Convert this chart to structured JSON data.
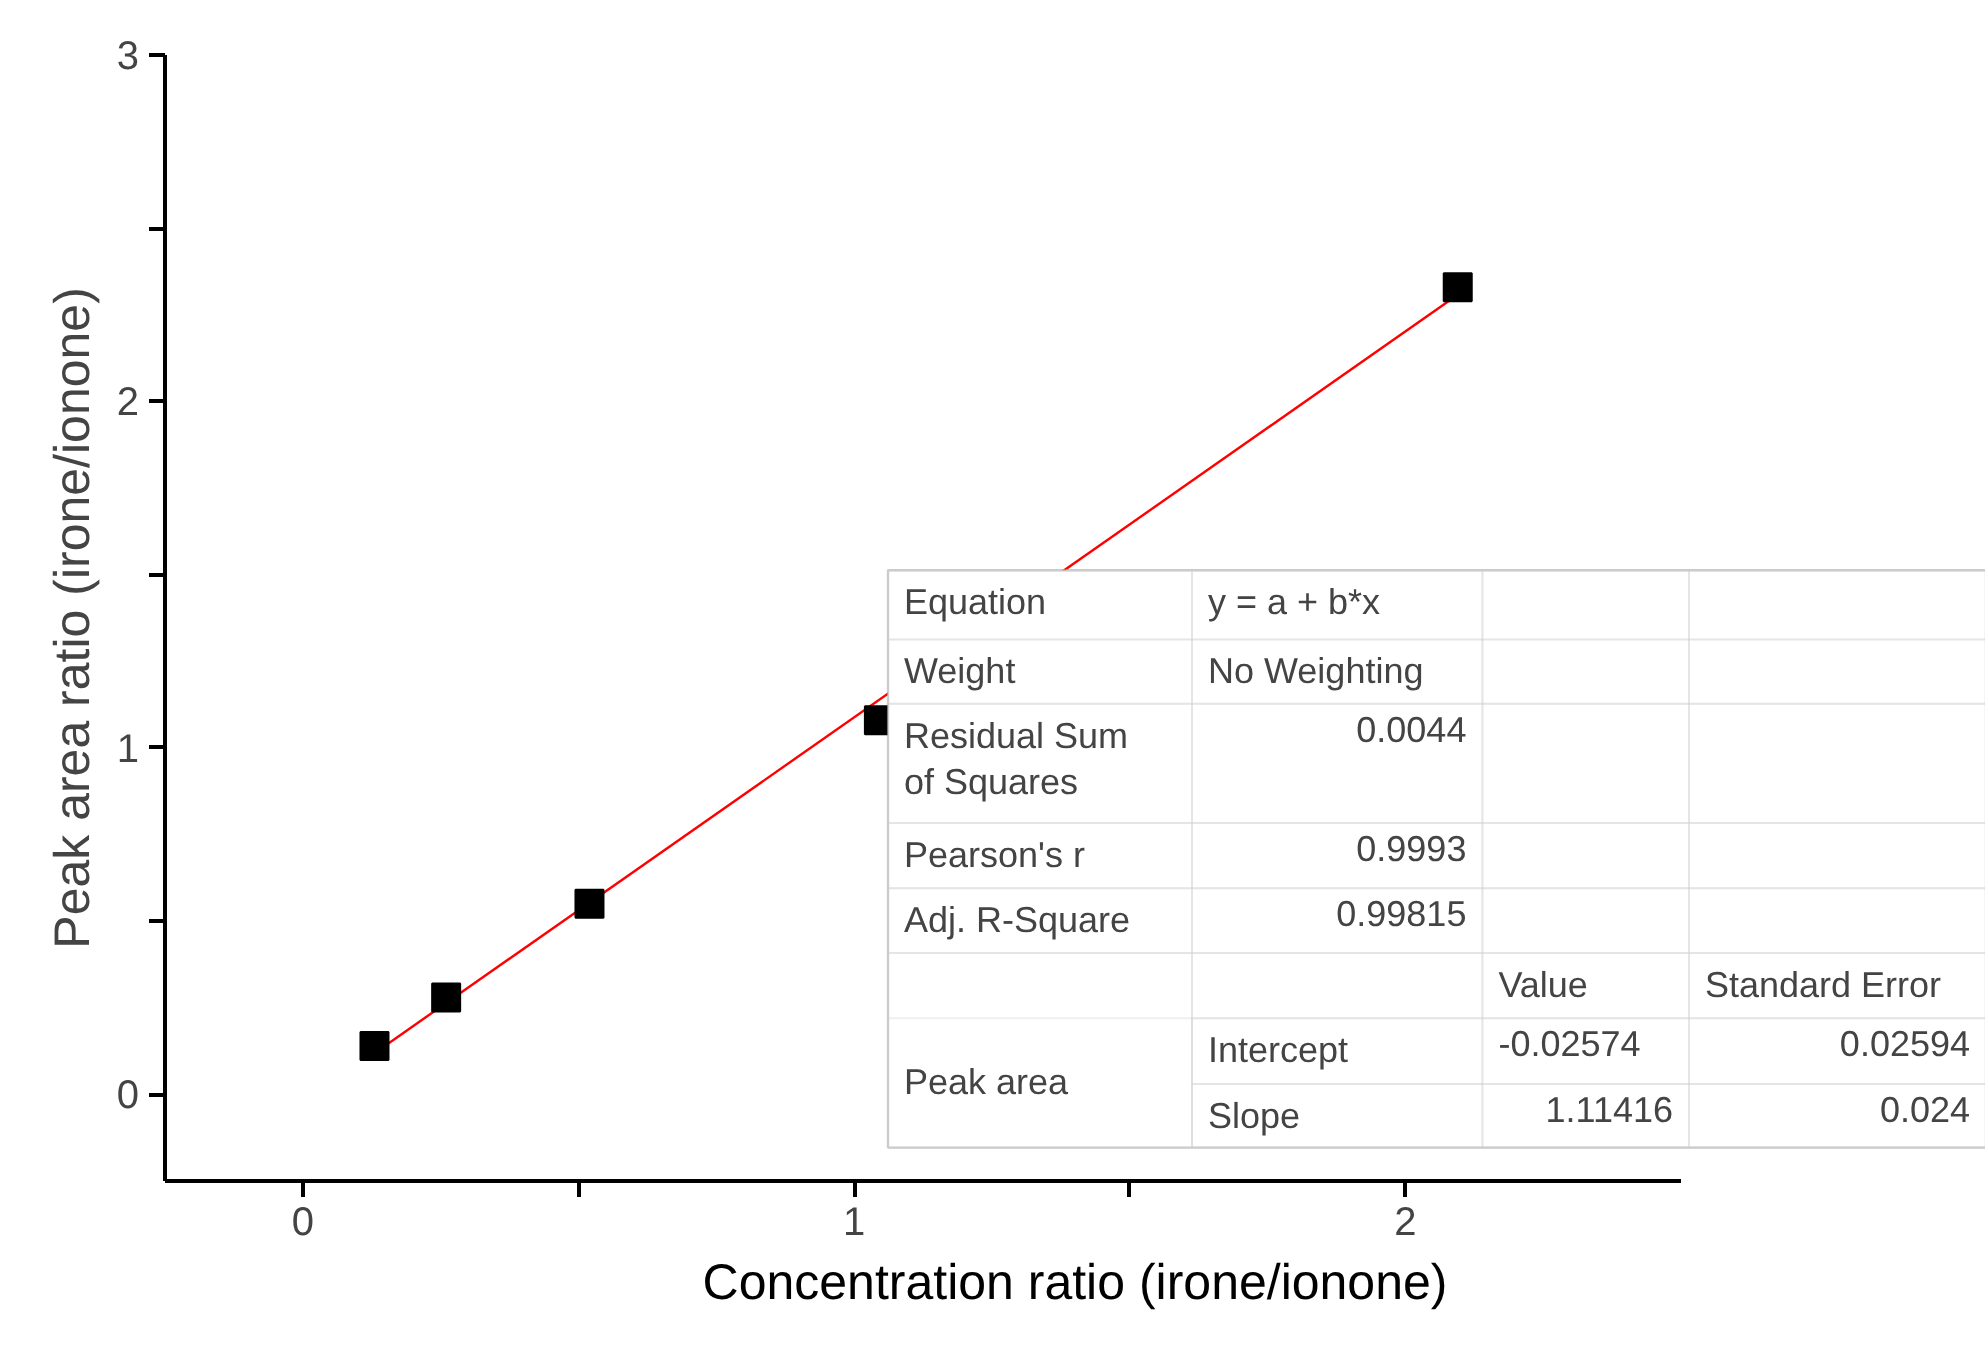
{
  "chart_data": {
    "type": "scatter",
    "xlabel": "Concentration ratio (irone/ionone)",
    "ylabel": "Peak area ratio (irone/ionone)",
    "xlim": [
      -0.25,
      2.5
    ],
    "xticks": [
      0,
      {
        "value": 0.5,
        "label": null
      },
      1,
      {
        "value": 1.5,
        "label": null
      },
      2
    ],
    "ylim": [
      -0.25,
      3
    ],
    "yticks": [
      0,
      {
        "value": 0.5,
        "label": null
      },
      1,
      {
        "value": 1.5,
        "label": null
      },
      2,
      {
        "value": 2.5,
        "label": null
      },
      3
    ],
    "marker": "square",
    "grid": false,
    "series": [
      {
        "color": "#000000",
        "x": [
          0.13,
          0.26,
          0.52,
          1.045,
          2.095
        ],
        "values": [
          0.14,
          0.28,
          0.55,
          1.08,
          2.33
        ]
      },
      {
        "type": "line",
        "marker": "none",
        "color": "#ff0000",
        "x": [
          0.13,
          2.095
        ],
        "values": [
          0.119,
          2.308
        ]
      }
    ],
    "annotations": [
      "Equation",
      "y = a + b*x",
      "Weight",
      "No Weighting",
      "Residual Sum\nof Squares",
      "0.0044",
      "Pearson's r",
      "0.9993",
      "Adj. R-Square",
      "0.99815",
      "Value",
      "Standard Error",
      "Peak area",
      "Intercept",
      "-0.02574",
      "0.02594",
      "Slope",
      "1.11416",
      "0.024"
    ]
  }
}
